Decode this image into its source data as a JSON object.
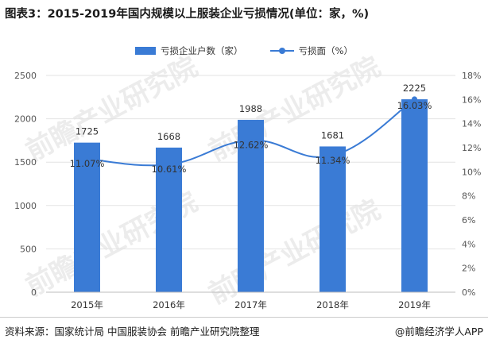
{
  "title": "图表3：2015-2019年国内规模以上服装企业亏损情况(单位：家，%)",
  "legend": {
    "bar_label": "亏损企业户数（家）",
    "line_label": "亏损面（%）"
  },
  "source": "资料来源：国家统计局 中国服装协会 前瞻产业研究院整理",
  "brand": "@前瞻经济学人APP",
  "watermark": "前瞻产业研究院",
  "colors": {
    "bar": "#3a7bd5",
    "line": "#3a7bd5",
    "axis_text": "#555555",
    "grid": "#e3e3e3"
  },
  "chart_data": {
    "type": "bar",
    "categories": [
      "2015年",
      "2016年",
      "2017年",
      "2018年",
      "2019年"
    ],
    "series": [
      {
        "name": "亏损企业户数（家）",
        "type": "bar",
        "axis": "left",
        "values": [
          1725,
          1668,
          1988,
          1681,
          2225
        ],
        "labels": [
          "1725",
          "1668",
          "1988",
          "1681",
          "2225"
        ]
      },
      {
        "name": "亏损面（%）",
        "type": "line",
        "axis": "right",
        "smooth": true,
        "values": [
          11.07,
          10.61,
          12.62,
          11.34,
          16.03
        ],
        "labels": [
          "11.07%",
          "10.61%",
          "12.62%",
          "11.34%",
          "16.03%"
        ]
      }
    ],
    "y_left": {
      "ylim": [
        0,
        2500
      ],
      "ticks": [
        "0",
        "500",
        "1000",
        "1500",
        "2000",
        "2500"
      ]
    },
    "y_right": {
      "ylim": [
        0,
        18
      ],
      "ticks": [
        "0%",
        "2%",
        "4%",
        "6%",
        "8%",
        "10%",
        "12%",
        "14%",
        "16%",
        "18%"
      ]
    },
    "grid": true,
    "legend_position": "top-center"
  }
}
